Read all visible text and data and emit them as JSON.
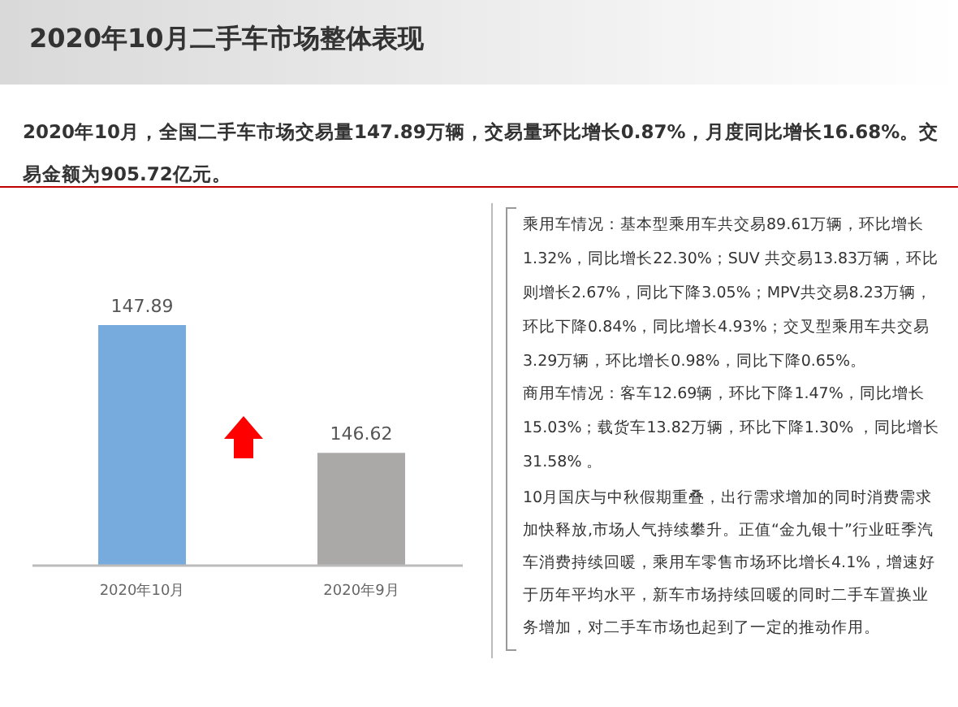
{
  "chart_data": {
    "type": "bar",
    "title": "2020年10月二手车市场整体表现",
    "subtitle": "2020年10月，全国二手车市场交易量147.89万辆，交易量环比增长0.87%，月度同比增长16.68%。交易金额为905.72亿元。",
    "categories": [
      "2020年10月",
      "2020年9月"
    ],
    "values": [
      147.89,
      146.62
    ],
    "colors": [
      "#77aadd",
      "#aaa9a8"
    ],
    "ylim": [
      145.5,
      147.89
    ],
    "data_labels": true,
    "tick_labels": "x",
    "annotations": [
      "乘用车情况：基本型乘用车共交易89.61万辆，环比增长1.32%，同比增长22.30%；SUV 共交易13.83万辆，环比则增长2.67%，同比下降3.05%；MPV共交易8.23万辆，环比下降0.84%，同比增长4.93%；交叉型乘用车共交易3.29万辆，环比增长0.98%，同比下降0.65%。",
      "商用车情况：客车12.69辆，环比下降1.47%，同比增长15.03%；载货车13.82万辆，环比下降1.30% ，同比增长31.58% 。",
      "10月国庆与中秋假期重叠，出行需求增加的同时消费需求加快释放,市场人气持续攀升。正值“金九银十”行业旺季汽车消费持续回暖，乘用车零售市场环比增长4.1%，增速好于历年平均水平，新车市场持续回暖的同时二手车置换业务增加，对二手车市场也起到了一定的推动作用。"
    ]
  }
}
